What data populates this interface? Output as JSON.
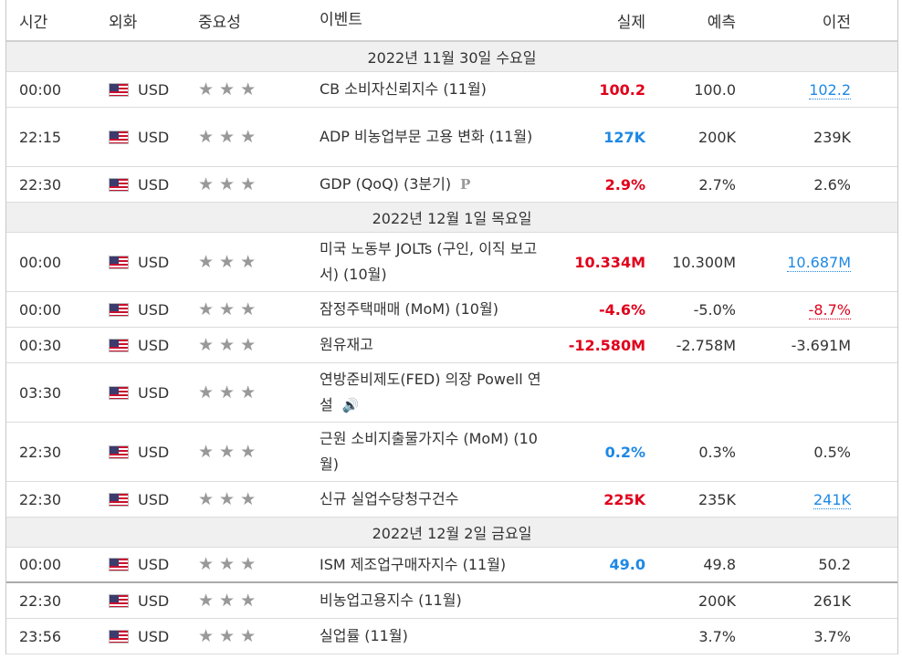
{
  "header": {
    "time": "시간",
    "currency": "외화",
    "importance": "중요성",
    "event": "이벤트",
    "actual": "실제",
    "forecast": "예측",
    "previous": "이전"
  },
  "icons": {
    "flag": "us-flag-icon",
    "star": "star-icon",
    "preliminary": "P",
    "speech": "speaker-icon"
  },
  "colors": {
    "positive": "#e0001b",
    "negative": "#1e88e5",
    "star": "#999999",
    "date_bg": "#f0f0f0"
  },
  "dates": [
    "2022년 11월 30일 수요일",
    "2022년 12월 1일 목요일",
    "2022년 12월 2일 금요일"
  ],
  "rows": [
    {
      "time": "00:00",
      "currency": "USD",
      "event": "CB 소비자신뢰지수 (11월)",
      "actual": "100.2",
      "forecast": "100.0",
      "previous": "102.2"
    },
    {
      "time": "22:15",
      "currency": "USD",
      "event": "ADP 비농업부문 고용 변화 (11월)",
      "actual": "127K",
      "forecast": "200K",
      "previous": "239K"
    },
    {
      "time": "22:30",
      "currency": "USD",
      "event": "GDP (QoQ) (3분기)",
      "actual": "2.9%",
      "forecast": "2.7%",
      "previous": "2.6%"
    },
    {
      "time": "00:00",
      "currency": "USD",
      "event": "미국 노동부 JOLTs (구인, 이직 보고서) (10월)",
      "actual": "10.334M",
      "forecast": "10.300M",
      "previous": "10.687M"
    },
    {
      "time": "00:00",
      "currency": "USD",
      "event": "잠정주택매매 (MoM) (10월)",
      "actual": "-4.6%",
      "forecast": "-5.0%",
      "previous": "-8.7%"
    },
    {
      "time": "00:30",
      "currency": "USD",
      "event": "원유재고",
      "actual": "-12.580M",
      "forecast": "-2.758M",
      "previous": "-3.691M"
    },
    {
      "time": "03:30",
      "currency": "USD",
      "event": "연방준비제도(FED) 의장 Powell 연설",
      "actual": "",
      "forecast": "",
      "previous": ""
    },
    {
      "time": "22:30",
      "currency": "USD",
      "event": "근원 소비지출물가지수 (MoM) (10월)",
      "actual": "0.2%",
      "forecast": "0.3%",
      "previous": "0.5%"
    },
    {
      "time": "22:30",
      "currency": "USD",
      "event": "신규 실업수당청구건수",
      "actual": "225K",
      "forecast": "235K",
      "previous": "241K"
    },
    {
      "time": "00:00",
      "currency": "USD",
      "event": "ISM 제조업구매자지수 (11월)",
      "actual": "49.0",
      "forecast": "49.8",
      "previous": "50.2"
    },
    {
      "time": "22:30",
      "currency": "USD",
      "event": "비농업고용지수 (11월)",
      "actual": "",
      "forecast": "200K",
      "previous": "261K"
    },
    {
      "time": "23:56",
      "currency": "USD",
      "event": "실업률 (11월)",
      "actual": "",
      "forecast": "3.7%",
      "previous": "3.7%"
    }
  ]
}
